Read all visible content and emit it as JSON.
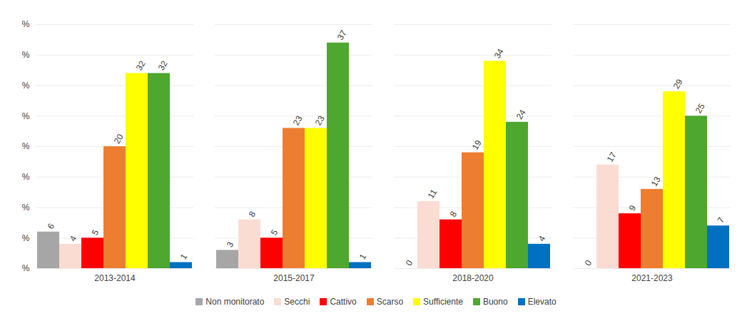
{
  "chart_data": {
    "type": "bar",
    "categories": [
      "2013-2014",
      "2015-2017",
      "2018-2020",
      "2021-2023"
    ],
    "series": [
      {
        "name": "Non monitorato",
        "color": "#a6a6a6",
        "values": [
          6,
          3,
          0,
          0
        ]
      },
      {
        "name": "Secchi",
        "color": "#fbdcd3",
        "values": [
          4,
          8,
          11,
          17
        ]
      },
      {
        "name": "Cattivo",
        "color": "#ff0000",
        "values": [
          5,
          5,
          8,
          9
        ]
      },
      {
        "name": "Scarso",
        "color": "#ed7d31",
        "values": [
          20,
          23,
          19,
          13
        ]
      },
      {
        "name": "Sufficiente",
        "color": "#ffff00",
        "values": [
          32,
          23,
          34,
          29
        ]
      },
      {
        "name": "Buono",
        "color": "#4ea72e",
        "values": [
          32,
          37,
          24,
          25
        ]
      },
      {
        "name": "Elevato",
        "color": "#0070c0",
        "values": [
          1,
          1,
          4,
          7
        ]
      }
    ],
    "ylim": [
      0,
      40
    ],
    "yticks": [
      {
        "value": 0,
        "label": "%"
      },
      {
        "value": 5,
        "label": "%"
      },
      {
        "value": 10,
        "label": "%"
      },
      {
        "value": 15,
        "label": "%"
      },
      {
        "value": 20,
        "label": "%"
      },
      {
        "value": 25,
        "label": "%"
      },
      {
        "value": 30,
        "label": "%"
      },
      {
        "value": 35,
        "label": "%"
      },
      {
        "value": 40,
        "label": "%"
      }
    ],
    "grid": true,
    "data_labels": true,
    "legend": "bottom"
  }
}
